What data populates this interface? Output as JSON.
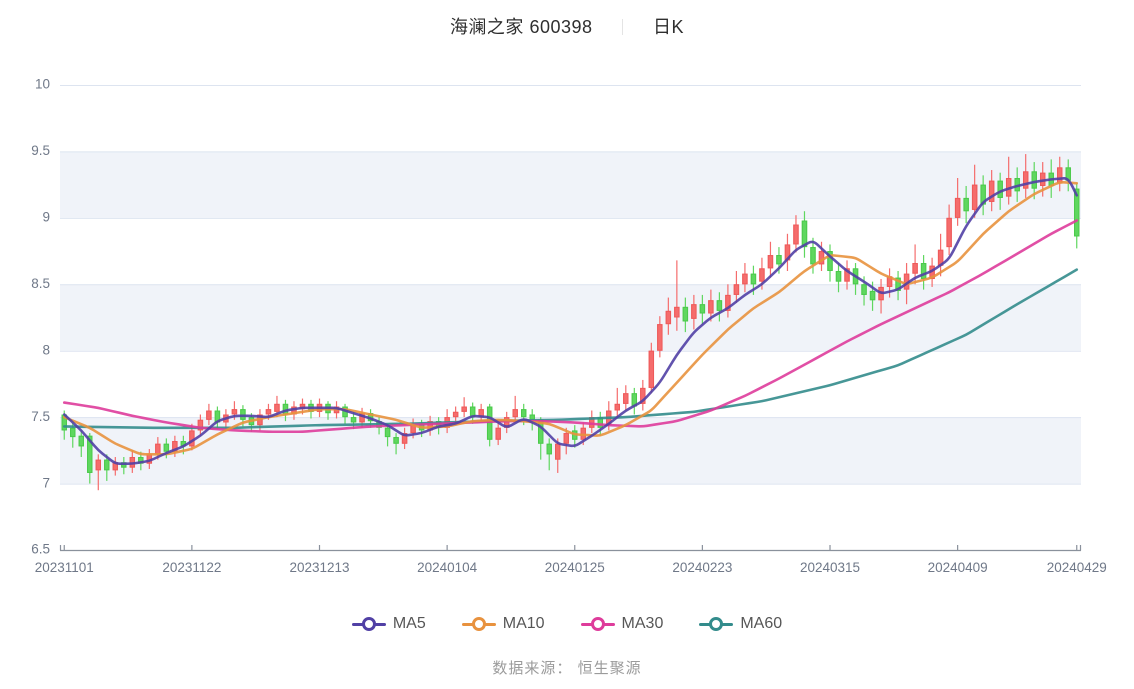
{
  "title": {
    "name": "海澜之家 600398",
    "separator": "｜",
    "mode": "日K"
  },
  "legend": {
    "items": [
      {
        "label": "MA5",
        "color": "#5140a5"
      },
      {
        "label": "MA10",
        "color": "#e8923e"
      },
      {
        "label": "MA30",
        "color": "#de3c9b"
      },
      {
        "label": "MA60",
        "color": "#338c8c"
      }
    ]
  },
  "footer": {
    "text": "数据来源： 恒生聚源"
  },
  "chart_data": {
    "type": "candlestick",
    "title": "海澜之家 600398 日K",
    "ylim": [
      6.5,
      10
    ],
    "y_tick_labels": [
      "10",
      "9.5",
      "9",
      "8.5",
      "8",
      "7.5",
      "7",
      "6.5"
    ],
    "x_tick_labels": [
      {
        "text": "20231101",
        "index": 0
      },
      {
        "text": "20231122",
        "index": 15
      },
      {
        "text": "20231213",
        "index": 30
      },
      {
        "text": "20240104",
        "index": 45
      },
      {
        "text": "20240125",
        "index": 60
      },
      {
        "text": "20240223",
        "index": 75
      },
      {
        "text": "20240315",
        "index": 90
      },
      {
        "text": "20240409",
        "index": 105
      },
      {
        "text": "20240429",
        "index": 119
      }
    ],
    "num_candles": 120,
    "up_color": "#f56c6c",
    "up_border_color": "#ee5a5a",
    "down_color": "#5fd75f",
    "down_border_color": "#4bc94b",
    "grid_color": "#dde4f0",
    "band_color": "#f0f3f9",
    "axis_line_color": "#8a919c",
    "label_color": "#6f7888",
    "candles_format": "[open, close, low, high]",
    "candles": [
      [
        7.52,
        7.4,
        7.33,
        7.55
      ],
      [
        7.42,
        7.35,
        7.27,
        7.46
      ],
      [
        7.36,
        7.28,
        7.2,
        7.4
      ],
      [
        7.36,
        7.08,
        7.0,
        7.38
      ],
      [
        7.1,
        7.18,
        6.95,
        7.22
      ],
      [
        7.18,
        7.1,
        7.02,
        7.22
      ],
      [
        7.1,
        7.16,
        7.06,
        7.2
      ],
      [
        7.16,
        7.12,
        7.07,
        7.2
      ],
      [
        7.12,
        7.2,
        7.08,
        7.25
      ],
      [
        7.2,
        7.15,
        7.1,
        7.24
      ],
      [
        7.15,
        7.22,
        7.11,
        7.26
      ],
      [
        7.22,
        7.3,
        7.18,
        7.35
      ],
      [
        7.3,
        7.24,
        7.19,
        7.34
      ],
      [
        7.24,
        7.32,
        7.2,
        7.36
      ],
      [
        7.32,
        7.28,
        7.22,
        7.36
      ],
      [
        7.28,
        7.4,
        7.25,
        7.45
      ],
      [
        7.4,
        7.48,
        7.36,
        7.52
      ],
      [
        7.48,
        7.55,
        7.44,
        7.6
      ],
      [
        7.55,
        7.46,
        7.41,
        7.58
      ],
      [
        7.46,
        7.52,
        7.42,
        7.56
      ],
      [
        7.52,
        7.56,
        7.48,
        7.62
      ],
      [
        7.56,
        7.48,
        7.43,
        7.59
      ],
      [
        7.5,
        7.44,
        7.39,
        7.53
      ],
      [
        7.44,
        7.52,
        7.4,
        7.56
      ],
      [
        7.52,
        7.56,
        7.48,
        7.6
      ],
      [
        7.54,
        7.6,
        7.5,
        7.66
      ],
      [
        7.6,
        7.52,
        7.47,
        7.63
      ],
      [
        7.52,
        7.58,
        7.48,
        7.62
      ],
      [
        7.56,
        7.6,
        7.52,
        7.64
      ],
      [
        7.6,
        7.54,
        7.49,
        7.63
      ],
      [
        7.54,
        7.6,
        7.5,
        7.64
      ],
      [
        7.6,
        7.53,
        7.48,
        7.62
      ],
      [
        7.53,
        7.58,
        7.49,
        7.62
      ],
      [
        7.58,
        7.5,
        7.45,
        7.6
      ],
      [
        7.5,
        7.46,
        7.41,
        7.54
      ],
      [
        7.46,
        7.53,
        7.42,
        7.57
      ],
      [
        7.53,
        7.47,
        7.42,
        7.56
      ],
      [
        7.47,
        7.42,
        7.37,
        7.5
      ],
      [
        7.42,
        7.35,
        7.28,
        7.45
      ],
      [
        7.35,
        7.3,
        7.22,
        7.38
      ],
      [
        7.3,
        7.38,
        7.26,
        7.42
      ],
      [
        7.38,
        7.45,
        7.34,
        7.49
      ],
      [
        7.45,
        7.4,
        7.35,
        7.48
      ],
      [
        7.4,
        7.47,
        7.36,
        7.51
      ],
      [
        7.47,
        7.42,
        7.37,
        7.5
      ],
      [
        7.42,
        7.5,
        7.38,
        7.56
      ],
      [
        7.5,
        7.54,
        7.46,
        7.58
      ],
      [
        7.54,
        7.58,
        7.5,
        7.65
      ],
      [
        7.58,
        7.5,
        7.45,
        7.61
      ],
      [
        7.5,
        7.56,
        7.46,
        7.6
      ],
      [
        7.58,
        7.33,
        7.28,
        7.6
      ],
      [
        7.33,
        7.42,
        7.29,
        7.46
      ],
      [
        7.42,
        7.5,
        7.38,
        7.54
      ],
      [
        7.5,
        7.56,
        7.46,
        7.66
      ],
      [
        7.56,
        7.5,
        7.44,
        7.6
      ],
      [
        7.52,
        7.48,
        7.4,
        7.56
      ],
      [
        7.48,
        7.3,
        7.18,
        7.5
      ],
      [
        7.3,
        7.22,
        7.1,
        7.34
      ],
      [
        7.18,
        7.3,
        7.08,
        7.34
      ],
      [
        7.3,
        7.38,
        7.22,
        7.42
      ],
      [
        7.4,
        7.33,
        7.27,
        7.44
      ],
      [
        7.33,
        7.42,
        7.29,
        7.46
      ],
      [
        7.42,
        7.5,
        7.38,
        7.55
      ],
      [
        7.5,
        7.42,
        7.36,
        7.54
      ],
      [
        7.44,
        7.55,
        7.4,
        7.62
      ],
      [
        7.55,
        7.6,
        7.5,
        7.72
      ],
      [
        7.6,
        7.68,
        7.55,
        7.74
      ],
      [
        7.68,
        7.58,
        7.52,
        7.72
      ],
      [
        7.6,
        7.72,
        7.55,
        7.78
      ],
      [
        7.72,
        8.0,
        7.68,
        8.06
      ],
      [
        8.0,
        8.2,
        7.95,
        8.26
      ],
      [
        8.2,
        8.3,
        8.12,
        8.4
      ],
      [
        8.25,
        8.33,
        8.15,
        8.68
      ],
      [
        8.33,
        8.22,
        8.14,
        8.4
      ],
      [
        8.24,
        8.35,
        8.16,
        8.42
      ],
      [
        8.35,
        8.28,
        8.2,
        8.42
      ],
      [
        8.28,
        8.38,
        8.22,
        8.46
      ],
      [
        8.38,
        8.3,
        8.22,
        8.44
      ],
      [
        8.3,
        8.42,
        8.25,
        8.5
      ],
      [
        8.42,
        8.5,
        8.36,
        8.6
      ],
      [
        8.5,
        8.58,
        8.44,
        8.66
      ],
      [
        8.58,
        8.5,
        8.42,
        8.64
      ],
      [
        8.52,
        8.62,
        8.46,
        8.7
      ],
      [
        8.62,
        8.72,
        8.55,
        8.82
      ],
      [
        8.72,
        8.65,
        8.58,
        8.78
      ],
      [
        8.68,
        8.8,
        8.6,
        8.88
      ],
      [
        8.8,
        8.95,
        8.74,
        9.02
      ],
      [
        8.98,
        8.78,
        8.7,
        9.05
      ],
      [
        8.78,
        8.65,
        8.58,
        8.85
      ],
      [
        8.65,
        8.75,
        8.6,
        8.82
      ],
      [
        8.75,
        8.6,
        8.52,
        8.8
      ],
      [
        8.6,
        8.52,
        8.44,
        8.66
      ],
      [
        8.52,
        8.62,
        8.46,
        8.68
      ],
      [
        8.62,
        8.5,
        8.42,
        8.66
      ],
      [
        8.5,
        8.42,
        8.34,
        8.56
      ],
      [
        8.45,
        8.38,
        8.3,
        8.52
      ],
      [
        8.38,
        8.48,
        8.28,
        8.54
      ],
      [
        8.48,
        8.56,
        8.4,
        8.62
      ],
      [
        8.55,
        8.45,
        8.38,
        8.6
      ],
      [
        8.46,
        8.58,
        8.35,
        8.66
      ],
      [
        8.58,
        8.66,
        8.5,
        8.8
      ],
      [
        8.66,
        8.54,
        8.46,
        8.72
      ],
      [
        8.54,
        8.64,
        8.48,
        8.7
      ],
      [
        8.64,
        8.76,
        8.56,
        8.88
      ],
      [
        8.78,
        9.0,
        8.72,
        9.1
      ],
      [
        9.0,
        9.15,
        8.94,
        9.3
      ],
      [
        9.15,
        9.05,
        8.96,
        9.24
      ],
      [
        9.06,
        9.25,
        9.0,
        9.4
      ],
      [
        9.25,
        9.1,
        9.02,
        9.32
      ],
      [
        9.12,
        9.28,
        9.05,
        9.36
      ],
      [
        9.28,
        9.15,
        9.06,
        9.34
      ],
      [
        9.16,
        9.3,
        9.1,
        9.46
      ],
      [
        9.3,
        9.2,
        9.12,
        9.38
      ],
      [
        9.22,
        9.35,
        9.15,
        9.48
      ],
      [
        9.35,
        9.22,
        9.14,
        9.42
      ],
      [
        9.24,
        9.34,
        9.16,
        9.42
      ],
      [
        9.34,
        9.24,
        9.15,
        9.44
      ],
      [
        9.26,
        9.38,
        9.2,
        9.46
      ],
      [
        9.38,
        9.28,
        9.2,
        9.44
      ],
      [
        9.22,
        8.86,
        8.77,
        9.26
      ]
    ],
    "ma_series": [
      {
        "name": "MA5",
        "color": "#5140a5",
        "keypoints": [
          [
            0,
            7.52
          ],
          [
            2,
            7.4
          ],
          [
            4,
            7.25
          ],
          [
            6,
            7.15
          ],
          [
            8,
            7.15
          ],
          [
            10,
            7.17
          ],
          [
            12,
            7.23
          ],
          [
            14,
            7.28
          ],
          [
            16,
            7.36
          ],
          [
            18,
            7.47
          ],
          [
            20,
            7.51
          ],
          [
            22,
            7.51
          ],
          [
            24,
            7.5
          ],
          [
            26,
            7.55
          ],
          [
            28,
            7.57
          ],
          [
            30,
            7.57
          ],
          [
            32,
            7.57
          ],
          [
            34,
            7.53
          ],
          [
            36,
            7.49
          ],
          [
            38,
            7.44
          ],
          [
            40,
            7.36
          ],
          [
            42,
            7.38
          ],
          [
            44,
            7.43
          ],
          [
            46,
            7.45
          ],
          [
            48,
            7.51
          ],
          [
            50,
            7.5
          ],
          [
            52,
            7.42
          ],
          [
            54,
            7.49
          ],
          [
            56,
            7.43
          ],
          [
            58,
            7.3
          ],
          [
            60,
            7.28
          ],
          [
            62,
            7.36
          ],
          [
            64,
            7.45
          ],
          [
            66,
            7.55
          ],
          [
            68,
            7.62
          ],
          [
            70,
            7.76
          ],
          [
            72,
            7.97
          ],
          [
            74,
            8.14
          ],
          [
            76,
            8.25
          ],
          [
            78,
            8.32
          ],
          [
            80,
            8.42
          ],
          [
            82,
            8.5
          ],
          [
            84,
            8.62
          ],
          [
            86,
            8.76
          ],
          [
            88,
            8.83
          ],
          [
            90,
            8.71
          ],
          [
            92,
            8.6
          ],
          [
            94,
            8.52
          ],
          [
            96,
            8.43
          ],
          [
            98,
            8.46
          ],
          [
            100,
            8.55
          ],
          [
            102,
            8.6
          ],
          [
            104,
            8.69
          ],
          [
            106,
            8.94
          ],
          [
            108,
            9.12
          ],
          [
            110,
            9.2
          ],
          [
            112,
            9.24
          ],
          [
            114,
            9.27
          ],
          [
            116,
            9.29
          ],
          [
            118,
            9.3
          ],
          [
            119,
            9.17
          ]
        ]
      },
      {
        "name": "MA10",
        "color": "#e8923e",
        "keypoints": [
          [
            0,
            7.5
          ],
          [
            3,
            7.42
          ],
          [
            6,
            7.3
          ],
          [
            9,
            7.22
          ],
          [
            12,
            7.22
          ],
          [
            15,
            7.26
          ],
          [
            18,
            7.37
          ],
          [
            21,
            7.46
          ],
          [
            24,
            7.5
          ],
          [
            27,
            7.53
          ],
          [
            30,
            7.56
          ],
          [
            33,
            7.56
          ],
          [
            36,
            7.52
          ],
          [
            39,
            7.48
          ],
          [
            42,
            7.42
          ],
          [
            45,
            7.43
          ],
          [
            48,
            7.47
          ],
          [
            51,
            7.48
          ],
          [
            54,
            7.47
          ],
          [
            57,
            7.45
          ],
          [
            60,
            7.37
          ],
          [
            63,
            7.36
          ],
          [
            66,
            7.44
          ],
          [
            69,
            7.55
          ],
          [
            72,
            7.76
          ],
          [
            75,
            7.97
          ],
          [
            78,
            8.16
          ],
          [
            81,
            8.32
          ],
          [
            84,
            8.44
          ],
          [
            87,
            8.6
          ],
          [
            90,
            8.72
          ],
          [
            93,
            8.7
          ],
          [
            96,
            8.58
          ],
          [
            99,
            8.5
          ],
          [
            102,
            8.55
          ],
          [
            105,
            8.67
          ],
          [
            108,
            8.88
          ],
          [
            111,
            9.05
          ],
          [
            114,
            9.18
          ],
          [
            117,
            9.27
          ],
          [
            119,
            9.26
          ]
        ]
      },
      {
        "name": "MA30",
        "color": "#de3c9b",
        "keypoints": [
          [
            0,
            7.61
          ],
          [
            4,
            7.57
          ],
          [
            8,
            7.51
          ],
          [
            12,
            7.46
          ],
          [
            16,
            7.42
          ],
          [
            20,
            7.4
          ],
          [
            24,
            7.39
          ],
          [
            28,
            7.39
          ],
          [
            32,
            7.41
          ],
          [
            36,
            7.43
          ],
          [
            40,
            7.44
          ],
          [
            44,
            7.45
          ],
          [
            48,
            7.46
          ],
          [
            52,
            7.47
          ],
          [
            56,
            7.47
          ],
          [
            60,
            7.46
          ],
          [
            64,
            7.44
          ],
          [
            68,
            7.43
          ],
          [
            72,
            7.47
          ],
          [
            76,
            7.55
          ],
          [
            80,
            7.66
          ],
          [
            84,
            7.79
          ],
          [
            88,
            7.93
          ],
          [
            92,
            8.07
          ],
          [
            96,
            8.2
          ],
          [
            100,
            8.32
          ],
          [
            104,
            8.44
          ],
          [
            108,
            8.58
          ],
          [
            112,
            8.73
          ],
          [
            116,
            8.88
          ],
          [
            119,
            8.98
          ]
        ]
      },
      {
        "name": "MA60",
        "color": "#338c8c",
        "keypoints": [
          [
            0,
            7.43
          ],
          [
            10,
            7.42
          ],
          [
            20,
            7.42
          ],
          [
            30,
            7.44
          ],
          [
            40,
            7.45
          ],
          [
            50,
            7.47
          ],
          [
            58,
            7.48
          ],
          [
            66,
            7.5
          ],
          [
            74,
            7.54
          ],
          [
            82,
            7.62
          ],
          [
            90,
            7.74
          ],
          [
            98,
            7.89
          ],
          [
            106,
            8.12
          ],
          [
            112,
            8.35
          ],
          [
            119,
            8.61
          ]
        ]
      }
    ]
  }
}
